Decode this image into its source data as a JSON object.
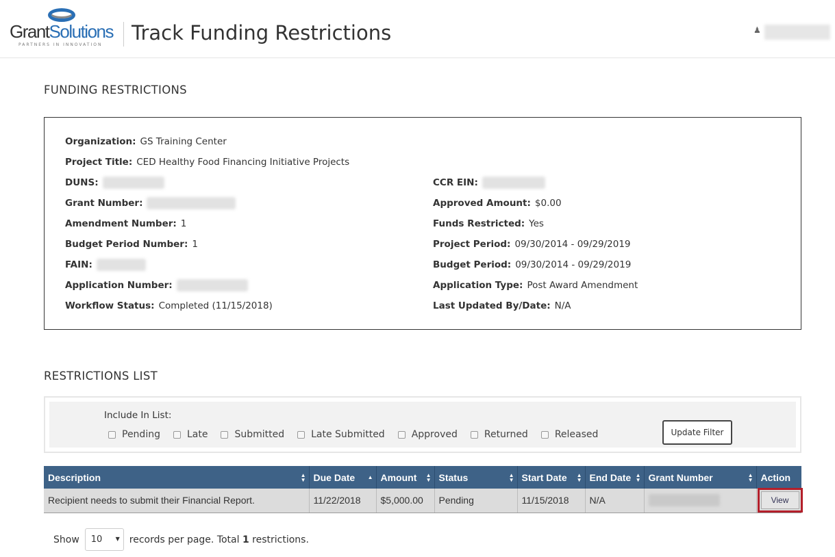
{
  "header": {
    "logo_text_1": "Grant",
    "logo_text_2": "Solutions",
    "logo_tagline": "PARTNERS IN INNOVATION",
    "title": "Track Funding Restrictions",
    "user_icon": "user-icon"
  },
  "funding": {
    "heading": "FUNDING RESTRICTIONS",
    "left": [
      {
        "label": "Organization:",
        "value": "GS Training Center"
      },
      {
        "label": "Project Title:",
        "value": "CED Healthy Food Financing Initiative Projects"
      },
      {
        "label": "DUNS:",
        "value": null
      },
      {
        "label": "Grant Number:",
        "value": null
      },
      {
        "label": "Amendment Number:",
        "value": "1"
      },
      {
        "label": "Budget Period Number:",
        "value": "1"
      },
      {
        "label": "FAIN:",
        "value": null
      },
      {
        "label": "Application Number:",
        "value": null
      },
      {
        "label": "Workflow Status:",
        "value": "Completed (11/15/2018)"
      }
    ],
    "right": [
      {
        "label": "CCR EIN:",
        "value": null
      },
      {
        "label": "Approved Amount:",
        "value": "$0.00"
      },
      {
        "label": "Funds Restricted:",
        "value": "Yes"
      },
      {
        "label": "Project Period:",
        "value": "09/30/2014 - 09/29/2019"
      },
      {
        "label": "Budget Period:",
        "value": "09/30/2014 - 09/29/2019"
      },
      {
        "label": "Application Type:",
        "value": "Post Award Amendment"
      },
      {
        "label": "Last Updated By/Date:",
        "value": "N/A"
      }
    ]
  },
  "restrictions": {
    "heading": "RESTRICTIONS LIST",
    "include_label": "Include In List:",
    "filters": [
      "Pending",
      "Late",
      "Submitted",
      "Late Submitted",
      "Approved",
      "Returned",
      "Released"
    ],
    "update_button": "Update Filter",
    "columns": [
      "Description",
      "Due Date",
      "Amount",
      "Status",
      "Start Date",
      "End Date",
      "Grant Number",
      "Action"
    ],
    "sorted_column": "Due Date",
    "rows": [
      {
        "description": "Recipient needs to submit their Financial Report.",
        "due_date": "11/22/2018",
        "amount": "$5,000.00",
        "status": "Pending",
        "start_date": "11/15/2018",
        "end_date": "N/A",
        "action": "View"
      }
    ],
    "show_label": "Show",
    "page_size": "10",
    "records_text": "records per page. Total",
    "total": "1",
    "restrictions_text": "restrictions."
  },
  "colors": {
    "table_header": "#3e6287",
    "highlight": "#b41f2a",
    "logo_blue": "#2a6fb5"
  }
}
